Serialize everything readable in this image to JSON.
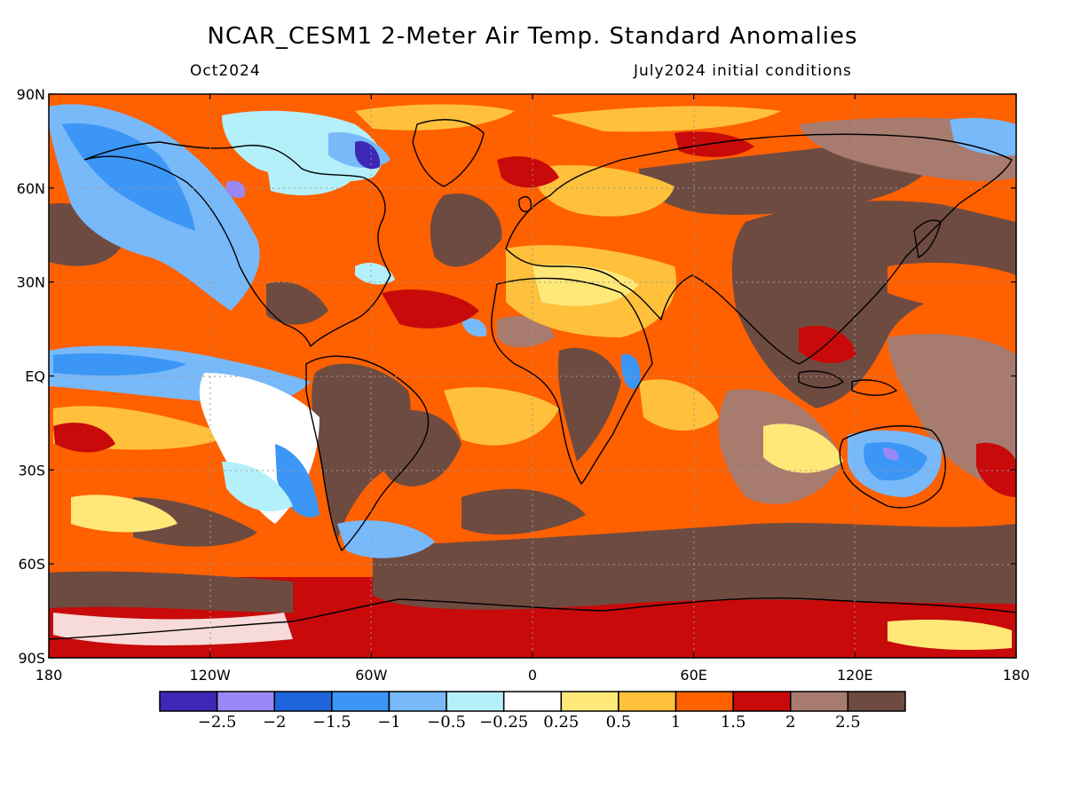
{
  "title": "NCAR_CESM1 2-Meter Air Temp. Standard Anomalies",
  "valid_month": "Oct2024",
  "initial_conditions": "July2024 initial conditions",
  "map": {
    "lat_ticks": [
      "90N",
      "60N",
      "30N",
      "EQ",
      "30S",
      "60S",
      "90S"
    ],
    "lon_ticks": [
      "180",
      "120W",
      "60W",
      "0",
      "60E",
      "120E",
      "180"
    ],
    "projection": "cylindrical equidistant",
    "lat_range": [
      -90,
      90
    ],
    "lon_range": [
      -180,
      180
    ],
    "gridlines": "dotted",
    "coastline_color": "#000000"
  },
  "colorbar": {
    "colors": [
      "#3c28b4",
      "#9b87f5",
      "#1e64dc",
      "#3c96f5",
      "#78b9fa",
      "#b4f0fa",
      "#ffffff",
      "#ffe878",
      "#ffc03c",
      "#ff6000",
      "#c80a0a",
      "#a87b6f",
      "#6e4b41"
    ],
    "labels": [
      "−2.5",
      "−2",
      "−1.5",
      "−1",
      "−0.5",
      "−0.25",
      "0.25",
      "0.5",
      "1",
      "1.5",
      "2",
      "2.5"
    ]
  }
}
